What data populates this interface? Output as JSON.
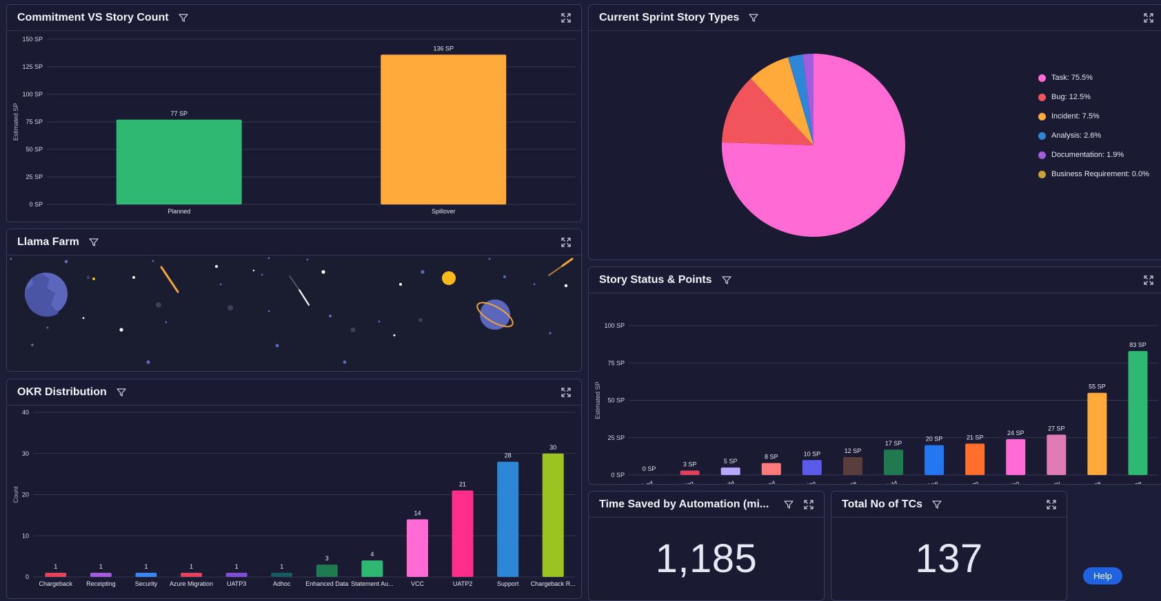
{
  "colors": {
    "background": "#1c1d36",
    "panel": "#1a1b33",
    "border": "#3a3c5c",
    "grid": "#34365a",
    "help_button": "#1f63e0"
  },
  "widgets": {
    "commitment": {
      "title": "Commitment VS Story Count",
      "chart_data": {
        "type": "bar",
        "ylabel": "Estimated SP",
        "categories": [
          "Planned",
          "Spillover"
        ],
        "values": [
          77,
          136
        ],
        "value_labels": [
          "77 SP",
          "136 SP"
        ],
        "ylim": [
          0,
          150
        ],
        "yticks": [
          0,
          25,
          50,
          75,
          100,
          125,
          150
        ],
        "ytick_labels": [
          "0 SP",
          "25 SP",
          "50 SP",
          "75 SP",
          "100 SP",
          "125 SP",
          "150 SP"
        ],
        "colors": [
          "#2eb872",
          "#ffaa3b"
        ],
        "grid": true
      }
    },
    "story_types": {
      "title": "Current Sprint Story Types",
      "chart_data": {
        "type": "pie",
        "labels": [
          "Task",
          "Bug",
          "Incident",
          "Analysis",
          "Documentation",
          "Business Requirement"
        ],
        "values": [
          75.5,
          12.5,
          7.5,
          2.6,
          1.9,
          0.0
        ],
        "legend_labels": [
          "Task: 75.5%",
          "Bug: 12.5%",
          "Incident: 7.5%",
          "Analysis: 2.6%",
          "Documentation: 1.9%",
          "Business Requirement: 0.0%"
        ],
        "colors": [
          "#ff6ad5",
          "#f2545b",
          "#ffaa3b",
          "#2d86d6",
          "#a25ddc",
          "#c9a33a"
        ],
        "legend": "right"
      }
    },
    "llama_farm": {
      "title": "Llama Farm",
      "scene": [
        "planet-icon",
        "sun-icon",
        "ringed-planet-icon",
        "comet-icon",
        "star-icon"
      ]
    },
    "story_status": {
      "title": "Story Status & Points",
      "chart_data": {
        "type": "bar",
        "ylabel": "Estimated SP",
        "categories": [
          "Blocked",
          "Failed Testing",
          "Waiting for build",
          "Closed",
          "In Testing",
          "Wait for Release",
          "On Hold",
          "Code review",
          "Open",
          "Ready for testing",
          "Dependency",
          "In Progress",
          "Done"
        ],
        "values": [
          0,
          3,
          5,
          8,
          10,
          12,
          17,
          20,
          21,
          24,
          27,
          55,
          83
        ],
        "value_labels": [
          "0 SP",
          "3 SP",
          "5 SP",
          "8 SP",
          "10 SP",
          "12 SP",
          "17 SP",
          "20 SP",
          "21 SP",
          "24 SP",
          "27 SP",
          "55 SP",
          "83 SP"
        ],
        "ylim": [
          0,
          100
        ],
        "yticks": [
          0,
          25,
          50,
          75,
          100
        ],
        "ytick_labels": [
          "0 SP",
          "25 SP",
          "50 SP",
          "75 SP",
          "100 SP"
        ],
        "colors": [
          "#8a8ca6",
          "#e0405a",
          "#b7a7ff",
          "#ff7a7a",
          "#5b5bea",
          "#5a3d3d",
          "#1f7a4f",
          "#2477f0",
          "#ff6f2b",
          "#ff6ad5",
          "#e07bb7",
          "#ffaa3b",
          "#2eb872"
        ],
        "grid": true
      }
    },
    "okr": {
      "title": "OKR Distribution",
      "chart_data": {
        "type": "bar",
        "ylabel": "Count",
        "categories": [
          "Chargeback",
          "Receipting",
          "Security",
          "Azure Migration",
          "UATP3",
          "Adhoc",
          "Enhanced Data",
          "Statement Au...",
          "VCC",
          "UATP2",
          "Support",
          "Chargeback R..."
        ],
        "values": [
          1,
          1,
          1,
          1,
          1,
          1,
          3,
          4,
          14,
          21,
          28,
          30
        ],
        "value_labels": [
          "1",
          "1",
          "1",
          "1",
          "1",
          "1",
          "3",
          "4",
          "14",
          "21",
          "28",
          "30"
        ],
        "ylim": [
          0,
          40
        ],
        "yticks": [
          0,
          10,
          20,
          30,
          40
        ],
        "ytick_labels": [
          "0",
          "10",
          "20",
          "30",
          "40"
        ],
        "colors": [
          "#e2445c",
          "#a25ddc",
          "#3a86f0",
          "#e2445c",
          "#7e4fd6",
          "#175a63",
          "#1f7a4f",
          "#2eb872",
          "#ff6ad5",
          "#ff2d8b",
          "#2d86d6",
          "#9cc421"
        ],
        "grid": true
      }
    },
    "time_saved": {
      "title": "Time Saved by Automation (mi...",
      "value": "1,185"
    },
    "total_tcs": {
      "title": "Total No of TCs",
      "value": "137"
    }
  },
  "help_label": "Help"
}
